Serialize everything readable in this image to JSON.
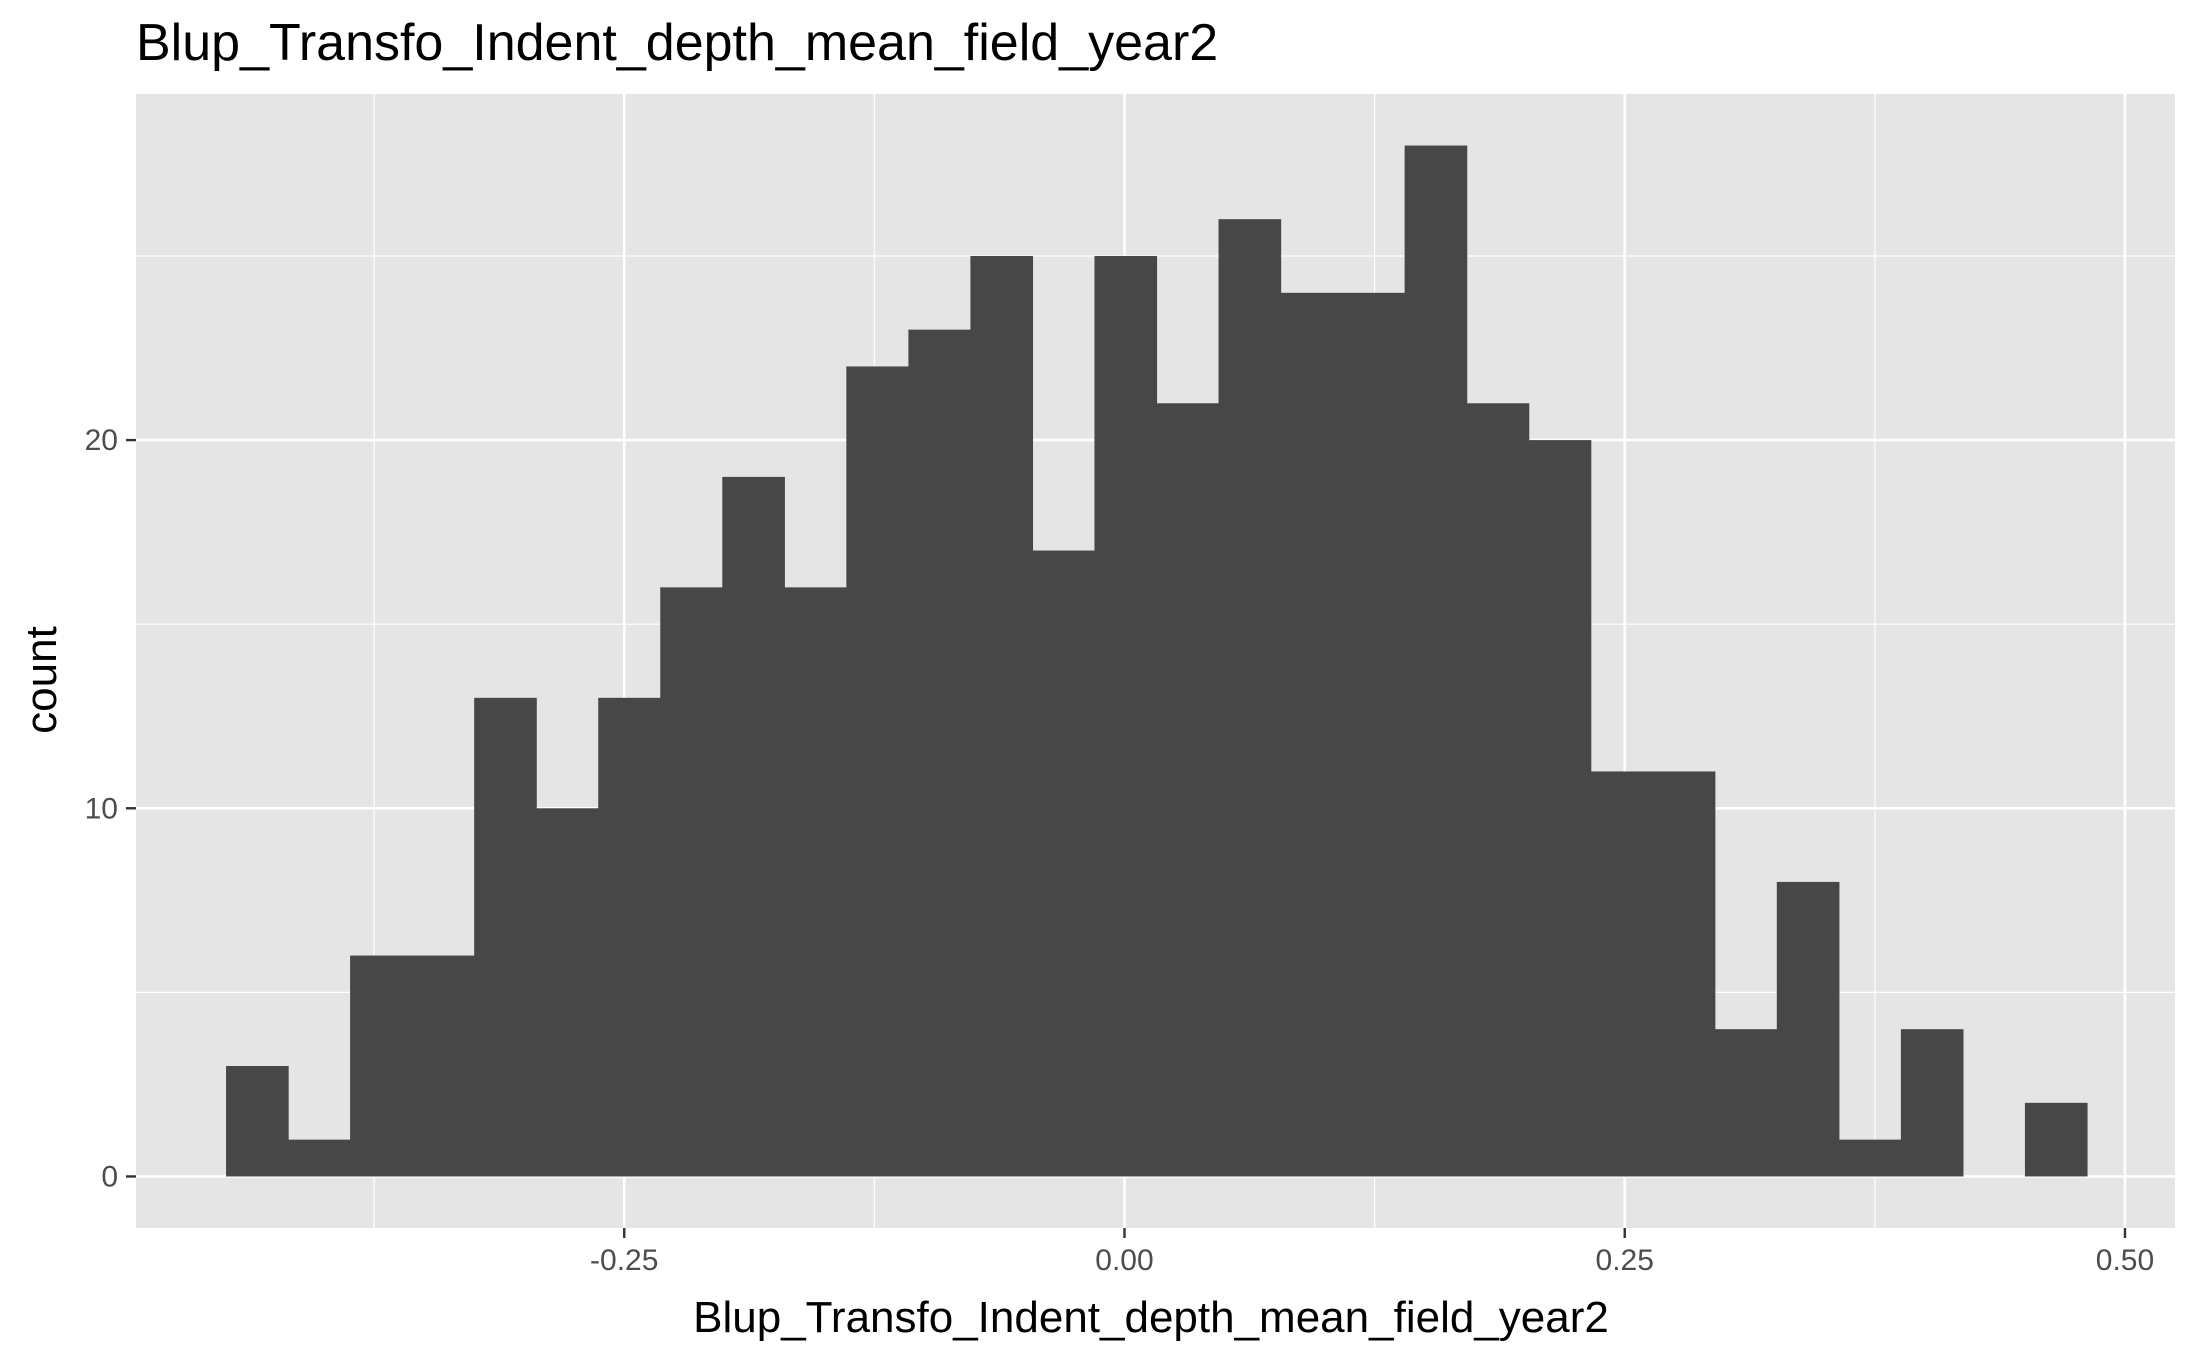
{
  "chart_data": {
    "type": "bar",
    "title": "Blup_Transfo_Indent_depth_mean_field_year2",
    "xlabel": "Blup_Transfo_Indent_depth_mean_field_year2",
    "ylabel": "count",
    "bin_width": 0.031,
    "bins_start": [
      -0.449,
      -0.418,
      -0.387,
      -0.356,
      -0.325,
      -0.294,
      -0.263,
      -0.232,
      -0.201,
      -0.17,
      -0.139,
      -0.108,
      -0.077,
      -0.046,
      -0.015,
      0.016,
      0.047,
      0.078,
      0.109,
      0.14,
      0.171,
      0.202,
      0.233,
      0.264,
      0.295,
      0.326,
      0.357,
      0.388,
      0.419,
      0.45
    ],
    "values": [
      3,
      1,
      6,
      6,
      13,
      10,
      13,
      16,
      19,
      16,
      22,
      23,
      25,
      17,
      25,
      21,
      26,
      24,
      24,
      28,
      21,
      20,
      11,
      11,
      4,
      8,
      1,
      4,
      0,
      2
    ],
    "xlim": [
      -0.494,
      0.525
    ],
    "ylim": [
      -1.4,
      29.4
    ],
    "x_ticks": [
      -0.25,
      0,
      0.25,
      0.5
    ],
    "x_tick_labels": [
      "-0.25",
      "0.00",
      "0.25",
      "0.50"
    ],
    "y_ticks": [
      0,
      10,
      20
    ],
    "y_tick_labels": [
      "0",
      "10",
      "20"
    ],
    "grid": true,
    "colors": {
      "panel": "#e5e5e5",
      "grid": "#ffffff",
      "bar": "#474747",
      "tick": "#333333"
    }
  }
}
